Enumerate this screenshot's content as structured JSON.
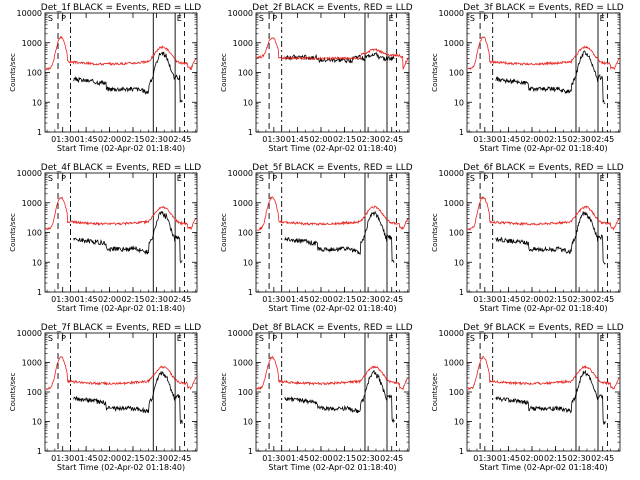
{
  "figure": {
    "xlabel": "Start Time (02-Apr-02 01:18:40)",
    "ylabel": "Counts/sec",
    "x_tick_labels": [
      "01:30",
      "01:45",
      "02:00",
      "02:15",
      "02:30",
      "02:45"
    ],
    "y_tick_labels": [
      "1",
      "10",
      "100",
      "1000",
      "10000"
    ],
    "marker_labels": [
      "S",
      "P",
      "E"
    ]
  },
  "colors": {
    "events": "#000000",
    "lld": "#e8231f",
    "axes": "#000000"
  },
  "chart_data": [
    {
      "type": "line",
      "title": "Det_1f BLACK = Events, RED = LLD",
      "xlabel": "Start Time (02-Apr-02 01:18:40)",
      "ylabel": "Counts/sec",
      "x_range": [
        "01:18:40",
        "02:56"
      ],
      "y_scale": "log",
      "ylim": [
        1,
        10000
      ],
      "markers": {
        "S_dashed": "01:27",
        "P_dashdot": "01:35",
        "E_solid": "02:27",
        "E2_dashed": "02:40"
      },
      "series": [
        {
          "name": "Events",
          "color": "#000000",
          "profile": "events"
        },
        {
          "name": "LLD",
          "color": "#e8231f",
          "profile": "lld"
        }
      ]
    },
    {
      "type": "line",
      "title": "Det_2f BLACK = Events, RED = LLD",
      "xlabel": "Start Time (02-Apr-02 01:18:40)",
      "ylabel": "Counts/sec",
      "x_range": [
        "01:18:40",
        "02:56"
      ],
      "y_scale": "log",
      "ylim": [
        1,
        10000
      ],
      "series": [
        {
          "name": "Events",
          "color": "#000000",
          "profile": "events_high"
        },
        {
          "name": "LLD",
          "color": "#e8231f",
          "profile": "lld_high"
        }
      ]
    },
    {
      "type": "line",
      "title": "Det_3f BLACK = Events, RED = LLD",
      "xlabel": "Start Time (02-Apr-02 01:18:40)",
      "ylabel": "Counts/sec",
      "x_range": [
        "01:18:40",
        "02:56"
      ],
      "y_scale": "log",
      "ylim": [
        1,
        10000
      ],
      "series": [
        {
          "name": "Events",
          "color": "#000000",
          "profile": "events"
        },
        {
          "name": "LLD",
          "color": "#e8231f",
          "profile": "lld"
        }
      ]
    },
    {
      "type": "line",
      "title": "Det_4f BLACK = Events, RED = LLD",
      "xlabel": "Start Time (02-Apr-02 01:18:40)",
      "ylabel": "Counts/sec",
      "x_range": [
        "01:18:40",
        "02:56"
      ],
      "y_scale": "log",
      "ylim": [
        1,
        10000
      ],
      "series": [
        {
          "name": "Events",
          "color": "#000000",
          "profile": "events"
        },
        {
          "name": "LLD",
          "color": "#e8231f",
          "profile": "lld"
        }
      ]
    },
    {
      "type": "line",
      "title": "Det_5f BLACK = Events, RED = LLD",
      "xlabel": "Start Time (02-Apr-02 01:18:40)",
      "ylabel": "Counts/sec",
      "x_range": [
        "01:18:40",
        "02:56"
      ],
      "y_scale": "log",
      "ylim": [
        1,
        10000
      ],
      "series": [
        {
          "name": "Events",
          "color": "#000000",
          "profile": "events"
        },
        {
          "name": "LLD",
          "color": "#e8231f",
          "profile": "lld"
        }
      ]
    },
    {
      "type": "line",
      "title": "Det_6f BLACK = Events, RED = LLD",
      "xlabel": "Start Time (02-Apr-02 01:18:40)",
      "ylabel": "Counts/sec",
      "x_range": [
        "01:18:40",
        "02:56"
      ],
      "y_scale": "log",
      "ylim": [
        1,
        10000
      ],
      "series": [
        {
          "name": "Events",
          "color": "#000000",
          "profile": "events"
        },
        {
          "name": "LLD",
          "color": "#e8231f",
          "profile": "lld"
        }
      ]
    },
    {
      "type": "line",
      "title": "Det_7f BLACK = Events, RED = LLD",
      "xlabel": "Start Time (02-Apr-02 01:18:40)",
      "ylabel": "Counts/sec",
      "x_range": [
        "01:18:40",
        "02:56"
      ],
      "y_scale": "log",
      "ylim": [
        1,
        10000
      ],
      "series": [
        {
          "name": "Events",
          "color": "#000000",
          "profile": "events"
        },
        {
          "name": "LLD",
          "color": "#e8231f",
          "profile": "lld"
        }
      ]
    },
    {
      "type": "line",
      "title": "Det_8f BLACK = Events, RED = LLD",
      "xlabel": "Start Time (02-Apr-02 01:18:40)",
      "ylabel": "Counts/sec",
      "x_range": [
        "01:18:40",
        "02:56"
      ],
      "y_scale": "log",
      "ylim": [
        1,
        10000
      ],
      "series": [
        {
          "name": "Events",
          "color": "#000000",
          "profile": "events"
        },
        {
          "name": "LLD",
          "color": "#e8231f",
          "profile": "lld"
        }
      ]
    },
    {
      "type": "line",
      "title": "Det_9f BLACK = Events, RED = LLD",
      "xlabel": "Start Time (02-Apr-02 01:18:40)",
      "ylabel": "Counts/sec",
      "x_range": [
        "01:18:40",
        "02:56"
      ],
      "y_scale": "log",
      "ylim": [
        1,
        10000
      ],
      "series": [
        {
          "name": "Events",
          "color": "#000000",
          "profile": "events"
        },
        {
          "name": "LLD",
          "color": "#e8231f",
          "profile": "lld"
        }
      ]
    }
  ]
}
